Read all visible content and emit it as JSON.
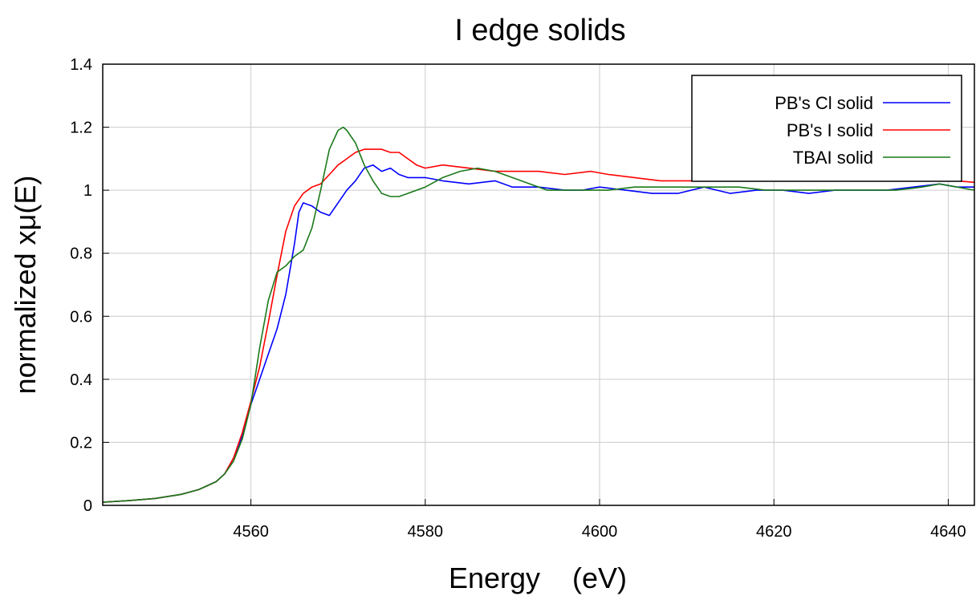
{
  "chart_data": {
    "type": "line",
    "title": "I edge solids",
    "xlabel": "Energy    (eV)",
    "ylabel": "normalized xμ(E)",
    "xlim": [
      4543,
      4643
    ],
    "ylim": [
      0,
      1.4
    ],
    "grid": true,
    "legend_position": "top-right",
    "x_ticks": [
      4560,
      4580,
      4600,
      4620,
      4640
    ],
    "y_ticks": [
      0,
      0.2,
      0.4,
      0.6,
      0.8,
      1,
      1.2,
      1.4
    ],
    "x_tick_labels": [
      "4560",
      "4580",
      "4600",
      "4620",
      "4640"
    ],
    "y_tick_labels": [
      "0",
      "0.2",
      "0.4",
      "0.6",
      "0.8",
      "1",
      "1.2",
      "1.4"
    ],
    "series": [
      {
        "name": "PB's Cl solid",
        "color": "#0000ff",
        "points": [
          [
            4543,
            0.01
          ],
          [
            4546,
            0.015
          ],
          [
            4549,
            0.022
          ],
          [
            4552,
            0.035
          ],
          [
            4554,
            0.05
          ],
          [
            4556,
            0.075
          ],
          [
            4557,
            0.1
          ],
          [
            4558,
            0.15
          ],
          [
            4559,
            0.22
          ],
          [
            4560,
            0.32
          ],
          [
            4561,
            0.4
          ],
          [
            4562,
            0.48
          ],
          [
            4563,
            0.56
          ],
          [
            4564,
            0.67
          ],
          [
            4565,
            0.83
          ],
          [
            4565.5,
            0.93
          ],
          [
            4566,
            0.96
          ],
          [
            4567,
            0.95
          ],
          [
            4568,
            0.93
          ],
          [
            4569,
            0.92
          ],
          [
            4570,
            0.96
          ],
          [
            4571,
            1.0
          ],
          [
            4572,
            1.03
          ],
          [
            4573,
            1.07
          ],
          [
            4574,
            1.08
          ],
          [
            4575,
            1.06
          ],
          [
            4576,
            1.07
          ],
          [
            4577,
            1.05
          ],
          [
            4578,
            1.04
          ],
          [
            4580,
            1.04
          ],
          [
            4582,
            1.03
          ],
          [
            4585,
            1.02
          ],
          [
            4588,
            1.03
          ],
          [
            4590,
            1.01
          ],
          [
            4593,
            1.01
          ],
          [
            4596,
            1.0
          ],
          [
            4598,
            1.0
          ],
          [
            4600,
            1.01
          ],
          [
            4603,
            1.0
          ],
          [
            4606,
            0.99
          ],
          [
            4609,
            0.99
          ],
          [
            4612,
            1.01
          ],
          [
            4615,
            0.99
          ],
          [
            4618,
            1.0
          ],
          [
            4621,
            1.0
          ],
          [
            4624,
            0.99
          ],
          [
            4627,
            1.0
          ],
          [
            4630,
            1.0
          ],
          [
            4633,
            1.0
          ],
          [
            4636,
            1.01
          ],
          [
            4639,
            1.02
          ],
          [
            4641,
            1.01
          ],
          [
            4643,
            1.01
          ]
        ]
      },
      {
        "name": "PB's I solid",
        "color": "#ff0000",
        "points": [
          [
            4543,
            0.01
          ],
          [
            4546,
            0.015
          ],
          [
            4549,
            0.022
          ],
          [
            4552,
            0.035
          ],
          [
            4554,
            0.05
          ],
          [
            4556,
            0.075
          ],
          [
            4557,
            0.1
          ],
          [
            4558,
            0.15
          ],
          [
            4559,
            0.23
          ],
          [
            4560,
            0.33
          ],
          [
            4561,
            0.44
          ],
          [
            4562,
            0.58
          ],
          [
            4563,
            0.73
          ],
          [
            4564,
            0.87
          ],
          [
            4565,
            0.95
          ],
          [
            4566,
            0.99
          ],
          [
            4567,
            1.01
          ],
          [
            4568,
            1.02
          ],
          [
            4569,
            1.05
          ],
          [
            4570,
            1.08
          ],
          [
            4571,
            1.1
          ],
          [
            4572,
            1.12
          ],
          [
            4573,
            1.13
          ],
          [
            4574,
            1.13
          ],
          [
            4575,
            1.13
          ],
          [
            4576,
            1.12
          ],
          [
            4577,
            1.12
          ],
          [
            4578,
            1.1
          ],
          [
            4579,
            1.08
          ],
          [
            4580,
            1.07
          ],
          [
            4582,
            1.08
          ],
          [
            4585,
            1.07
          ],
          [
            4588,
            1.06
          ],
          [
            4590,
            1.06
          ],
          [
            4593,
            1.06
          ],
          [
            4596,
            1.05
          ],
          [
            4599,
            1.06
          ],
          [
            4601,
            1.05
          ],
          [
            4604,
            1.04
          ],
          [
            4607,
            1.03
          ],
          [
            4610,
            1.03
          ],
          [
            4613,
            1.03
          ],
          [
            4616,
            1.04
          ],
          [
            4619,
            1.04
          ],
          [
            4622,
            1.04
          ],
          [
            4625,
            1.03
          ],
          [
            4628,
            1.03
          ],
          [
            4631,
            1.03
          ],
          [
            4634,
            1.03
          ],
          [
            4637,
            1.04
          ],
          [
            4639,
            1.04
          ],
          [
            4641,
            1.03
          ],
          [
            4643,
            1.025
          ]
        ]
      },
      {
        "name": "TBAI solid",
        "color": "#1a7a1a",
        "points": [
          [
            4543,
            0.01
          ],
          [
            4546,
            0.015
          ],
          [
            4549,
            0.022
          ],
          [
            4552,
            0.035
          ],
          [
            4554,
            0.05
          ],
          [
            4556,
            0.075
          ],
          [
            4557,
            0.1
          ],
          [
            4558,
            0.14
          ],
          [
            4559,
            0.21
          ],
          [
            4560,
            0.32
          ],
          [
            4561,
            0.5
          ],
          [
            4562,
            0.65
          ],
          [
            4563,
            0.74
          ],
          [
            4564,
            0.76
          ],
          [
            4565,
            0.79
          ],
          [
            4566,
            0.81
          ],
          [
            4567,
            0.88
          ],
          [
            4568,
            1.0
          ],
          [
            4569,
            1.13
          ],
          [
            4570,
            1.19
          ],
          [
            4570.6,
            1.2
          ],
          [
            4571,
            1.19
          ],
          [
            4572,
            1.15
          ],
          [
            4573,
            1.08
          ],
          [
            4574,
            1.03
          ],
          [
            4575,
            0.99
          ],
          [
            4576,
            0.98
          ],
          [
            4577,
            0.98
          ],
          [
            4578,
            0.99
          ],
          [
            4580,
            1.01
          ],
          [
            4582,
            1.04
          ],
          [
            4584,
            1.06
          ],
          [
            4586,
            1.07
          ],
          [
            4588,
            1.06
          ],
          [
            4590,
            1.04
          ],
          [
            4592,
            1.02
          ],
          [
            4594,
            1.0
          ],
          [
            4596,
            1.0
          ],
          [
            4598,
            1.0
          ],
          [
            4601,
            1.0
          ],
          [
            4604,
            1.01
          ],
          [
            4607,
            1.01
          ],
          [
            4610,
            1.01
          ],
          [
            4613,
            1.01
          ],
          [
            4616,
            1.01
          ],
          [
            4619,
            1.0
          ],
          [
            4622,
            1.0
          ],
          [
            4625,
            1.0
          ],
          [
            4628,
            1.0
          ],
          [
            4631,
            1.0
          ],
          [
            4634,
            1.0
          ],
          [
            4637,
            1.01
          ],
          [
            4639,
            1.02
          ],
          [
            4641,
            1.01
          ],
          [
            4643,
            1.0
          ]
        ]
      }
    ]
  }
}
